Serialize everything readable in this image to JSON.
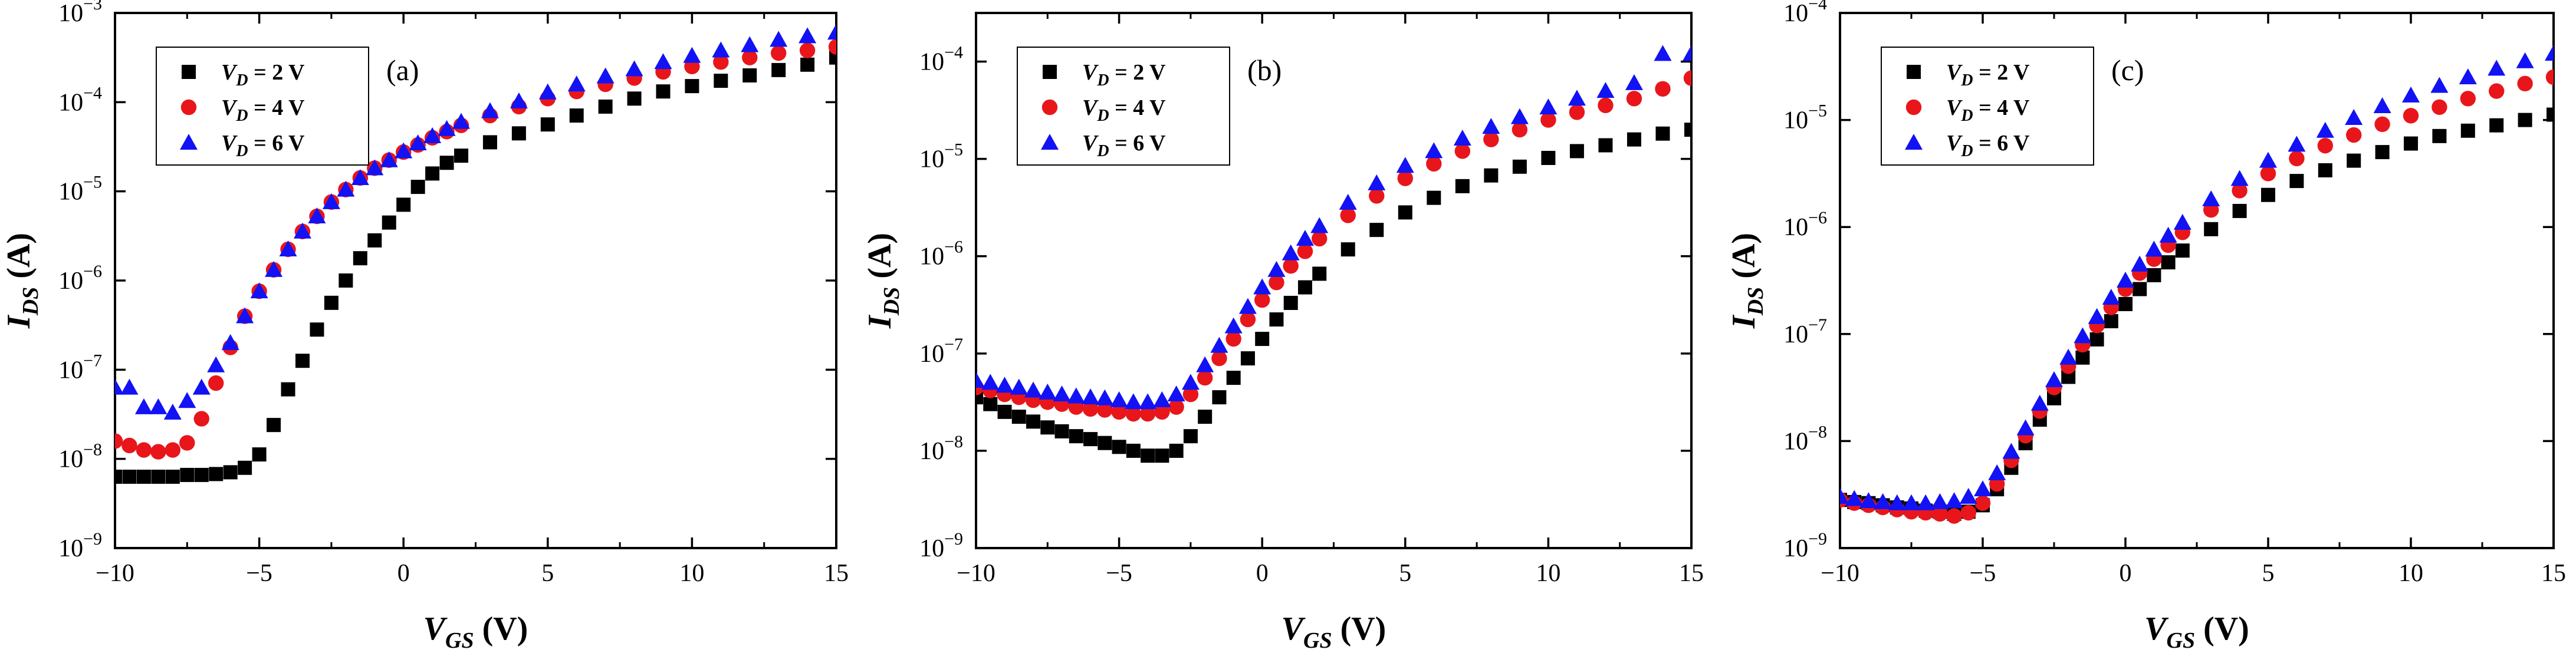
{
  "figure": {
    "panel_count": 3
  },
  "chart_data": [
    {
      "type": "scatter",
      "panel_label": "(a)",
      "xlabel": {
        "main": "V",
        "sub": "GS",
        "unit": "(V)"
      },
      "ylabel": {
        "main": "I",
        "sub": "DS",
        "unit": "(A)"
      },
      "xlim": [
        -10,
        15
      ],
      "ylim_log10": [
        -9,
        -3
      ],
      "y_scale": "log",
      "x_ticks": [
        -10,
        -5,
        0,
        5,
        10,
        15
      ],
      "x_tick_labels": [
        "−10",
        "−5",
        "0",
        "5",
        "10",
        "15"
      ],
      "y_ticks": [
        -9,
        -8,
        -7,
        -6,
        -5,
        -4,
        -3
      ],
      "legend_position": "top-left",
      "series": [
        {
          "name": "V_D = 2 V",
          "label_main": "V",
          "label_sub": "D",
          "label_rest": " = 2 V",
          "marker": "square",
          "color": "#000000",
          "x": [
            -10,
            -9.5,
            -9,
            -8.5,
            -8,
            -7.5,
            -7,
            -6.5,
            -6,
            -5.5,
            -5,
            -4.5,
            -4,
            -3.5,
            -3,
            -2.5,
            -2,
            -1.5,
            -1,
            -0.5,
            0,
            0.5,
            1,
            1.5,
            2,
            3,
            4,
            5,
            6,
            7,
            8,
            9,
            10,
            11,
            12,
            13,
            14,
            15
          ],
          "y_log10": [
            -8.2,
            -8.2,
            -8.2,
            -8.2,
            -8.2,
            -8.18,
            -8.18,
            -8.17,
            -8.15,
            -8.1,
            -7.95,
            -7.62,
            -7.22,
            -6.9,
            -6.55,
            -6.25,
            -6,
            -5.75,
            -5.55,
            -5.35,
            -5.15,
            -4.95,
            -4.8,
            -4.68,
            -4.6,
            -4.45,
            -4.35,
            -4.25,
            -4.15,
            -4.05,
            -3.96,
            -3.88,
            -3.82,
            -3.76,
            -3.7,
            -3.64,
            -3.58,
            -3.5
          ]
        },
        {
          "name": "V_D = 4 V",
          "label_main": "V",
          "label_sub": "D",
          "label_rest": " = 4 V",
          "marker": "circle",
          "color": "#e8161b",
          "x": [
            -10,
            -9.5,
            -9,
            -8.5,
            -8,
            -7.5,
            -7,
            -6.5,
            -6,
            -5.5,
            -5,
            -4.5,
            -4,
            -3.5,
            -3,
            -2.5,
            -2,
            -1.5,
            -1,
            -0.5,
            0,
            0.5,
            1,
            1.5,
            2,
            3,
            4,
            5,
            6,
            7,
            8,
            9,
            10,
            11,
            12,
            13,
            14,
            15
          ],
          "y_log10": [
            -7.8,
            -7.85,
            -7.9,
            -7.92,
            -7.9,
            -7.82,
            -7.55,
            -7.15,
            -6.75,
            -6.4,
            -6.12,
            -5.88,
            -5.65,
            -5.45,
            -5.28,
            -5.12,
            -4.98,
            -4.85,
            -4.74,
            -4.65,
            -4.56,
            -4.48,
            -4.4,
            -4.33,
            -4.26,
            -4.15,
            -4.05,
            -3.96,
            -3.88,
            -3.8,
            -3.73,
            -3.66,
            -3.6,
            -3.55,
            -3.5,
            -3.45,
            -3.42,
            -3.38
          ]
        },
        {
          "name": "V_D = 6 V",
          "label_main": "V",
          "label_sub": "D",
          "label_rest": " = 6 V",
          "marker": "triangle",
          "color": "#1212f5",
          "x": [
            -10,
            -9.5,
            -9,
            -8.5,
            -8,
            -7.5,
            -7,
            -6.5,
            -6,
            -5.5,
            -5,
            -4.5,
            -4,
            -3.5,
            -3,
            -2.5,
            -2,
            -1.5,
            -1,
            -0.5,
            0,
            0.5,
            1,
            1.5,
            2,
            3,
            4,
            5,
            6,
            7,
            8,
            9,
            10,
            11,
            12,
            13,
            14,
            15
          ],
          "y_log10": [
            -7.2,
            -7.2,
            -7.42,
            -7.42,
            -7.48,
            -7.35,
            -7.2,
            -6.95,
            -6.7,
            -6.4,
            -6.12,
            -5.88,
            -5.65,
            -5.45,
            -5.28,
            -5.12,
            -4.98,
            -4.85,
            -4.74,
            -4.65,
            -4.55,
            -4.46,
            -4.38,
            -4.3,
            -4.22,
            -4.1,
            -3.99,
            -3.89,
            -3.8,
            -3.71,
            -3.63,
            -3.55,
            -3.48,
            -3.42,
            -3.36,
            -3.3,
            -3.26,
            -3.22
          ]
        }
      ]
    },
    {
      "type": "scatter",
      "panel_label": "(b)",
      "xlabel": {
        "main": "V",
        "sub": "GS",
        "unit": "(V)"
      },
      "ylabel": {
        "main": "I",
        "sub": "DS",
        "unit": "(A)"
      },
      "xlim": [
        -10,
        15
      ],
      "ylim_log10": [
        -9,
        -3.5
      ],
      "y_scale": "log",
      "x_ticks": [
        -10,
        -5,
        0,
        5,
        10,
        15
      ],
      "x_tick_labels": [
        "−10",
        "−5",
        "0",
        "5",
        "10",
        "15"
      ],
      "y_ticks": [
        -9,
        -8,
        -7,
        -6,
        -5,
        -4
      ],
      "legend_position": "top-left",
      "series": [
        {
          "name": "V_D = 2 V",
          "label_main": "V",
          "label_sub": "D",
          "label_rest": " = 2 V",
          "marker": "square",
          "color": "#000000",
          "x": [
            -10,
            -9.5,
            -9,
            -8.5,
            -8,
            -7.5,
            -7,
            -6.5,
            -6,
            -5.5,
            -5,
            -4.5,
            -4,
            -3.5,
            -3,
            -2.5,
            -2,
            -1.5,
            -1,
            -0.5,
            0,
            0.5,
            1,
            1.5,
            2,
            3,
            4,
            5,
            6,
            7,
            8,
            9,
            10,
            11,
            12,
            13,
            14,
            15
          ],
          "y_log10": [
            -7.45,
            -7.52,
            -7.6,
            -7.65,
            -7.7,
            -7.76,
            -7.8,
            -7.85,
            -7.88,
            -7.92,
            -7.96,
            -8.0,
            -8.05,
            -8.05,
            -8.0,
            -7.85,
            -7.65,
            -7.45,
            -7.25,
            -7.05,
            -6.85,
            -6.65,
            -6.48,
            -6.32,
            -6.18,
            -5.93,
            -5.73,
            -5.55,
            -5.4,
            -5.28,
            -5.17,
            -5.08,
            -4.99,
            -4.92,
            -4.86,
            -4.8,
            -4.74,
            -4.7
          ]
        },
        {
          "name": "V_D = 4 V",
          "label_main": "V",
          "label_sub": "D",
          "label_rest": " = 4 V",
          "marker": "circle",
          "color": "#e8161b",
          "x": [
            -10,
            -9.5,
            -9,
            -8.5,
            -8,
            -7.5,
            -7,
            -6.5,
            -6,
            -5.5,
            -5,
            -4.5,
            -4,
            -3.5,
            -3,
            -2.5,
            -2,
            -1.5,
            -1,
            -0.5,
            0,
            0.5,
            1,
            1.5,
            2,
            3,
            4,
            5,
            6,
            7,
            8,
            9,
            10,
            11,
            12,
            13,
            14,
            15
          ],
          "y_log10": [
            -7.35,
            -7.38,
            -7.42,
            -7.45,
            -7.48,
            -7.5,
            -7.52,
            -7.55,
            -7.57,
            -7.58,
            -7.6,
            -7.62,
            -7.62,
            -7.6,
            -7.55,
            -7.42,
            -7.25,
            -7.05,
            -6.85,
            -6.65,
            -6.45,
            -6.27,
            -6.1,
            -5.95,
            -5.82,
            -5.58,
            -5.38,
            -5.2,
            -5.05,
            -4.92,
            -4.8,
            -4.7,
            -4.6,
            -4.52,
            -4.45,
            -4.38,
            -4.28,
            -4.17
          ]
        },
        {
          "name": "V_D = 6 V",
          "label_main": "V",
          "label_sub": "D",
          "label_rest": " = 6 V",
          "marker": "triangle",
          "color": "#1212f5",
          "x": [
            -10,
            -9.5,
            -9,
            -8.5,
            -8,
            -7.5,
            -7,
            -6.5,
            -6,
            -5.5,
            -5,
            -4.5,
            -4,
            -3.5,
            -3,
            -2.5,
            -2,
            -1.5,
            -1,
            -0.5,
            0,
            0.5,
            1,
            1.5,
            2,
            3,
            4,
            5,
            6,
            7,
            8,
            9,
            10,
            11,
            12,
            13,
            14,
            15
          ],
          "y_log10": [
            -7.28,
            -7.3,
            -7.33,
            -7.35,
            -7.38,
            -7.4,
            -7.42,
            -7.44,
            -7.45,
            -7.46,
            -7.48,
            -7.5,
            -7.5,
            -7.48,
            -7.42,
            -7.3,
            -7.12,
            -6.92,
            -6.72,
            -6.52,
            -6.32,
            -6.14,
            -5.97,
            -5.82,
            -5.69,
            -5.45,
            -5.25,
            -5.07,
            -4.92,
            -4.79,
            -4.67,
            -4.57,
            -4.47,
            -4.38,
            -4.3,
            -4.22,
            -3.92,
            -3.92
          ]
        }
      ]
    },
    {
      "type": "scatter",
      "panel_label": "(c)",
      "xlabel": {
        "main": "V",
        "sub": "GS",
        "unit": "(V)"
      },
      "ylabel": {
        "main": "I",
        "sub": "DS",
        "unit": "(A)"
      },
      "xlim": [
        -10,
        15
      ],
      "ylim_log10": [
        -9,
        -4
      ],
      "y_scale": "log",
      "x_ticks": [
        -10,
        -5,
        0,
        5,
        10,
        15
      ],
      "x_tick_labels": [
        "−10",
        "−5",
        "0",
        "5",
        "10",
        "15"
      ],
      "y_ticks": [
        -9,
        -8,
        -7,
        -6,
        -5,
        -4
      ],
      "legend_position": "top-left",
      "series": [
        {
          "name": "V_D = 2 V",
          "label_main": "V",
          "label_sub": "D",
          "label_rest": " = 2 V",
          "marker": "square",
          "color": "#000000",
          "x": [
            -10,
            -9.5,
            -9,
            -8.5,
            -8,
            -7.5,
            -7,
            -6.5,
            -6,
            -5.5,
            -5,
            -4.5,
            -4,
            -3.5,
            -3,
            -2.5,
            -2,
            -1.5,
            -1,
            -0.5,
            0,
            0.5,
            1,
            1.5,
            2,
            3,
            4,
            5,
            6,
            7,
            8,
            9,
            10,
            11,
            12,
            13,
            14,
            15
          ],
          "y_log10": [
            -8.55,
            -8.57,
            -8.58,
            -8.6,
            -8.62,
            -8.63,
            -8.65,
            -8.66,
            -8.68,
            -8.66,
            -8.6,
            -8.45,
            -8.25,
            -8.02,
            -7.8,
            -7.6,
            -7.4,
            -7.22,
            -7.05,
            -6.88,
            -6.72,
            -6.58,
            -6.45,
            -6.33,
            -6.22,
            -6.02,
            -5.85,
            -5.7,
            -5.57,
            -5.47,
            -5.38,
            -5.3,
            -5.22,
            -5.15,
            -5.1,
            -5.05,
            -5.0,
            -4.95
          ]
        },
        {
          "name": "V_D = 4 V",
          "label_main": "V",
          "label_sub": "D",
          "label_rest": " = 4 V",
          "marker": "circle",
          "color": "#e8161b",
          "x": [
            -10,
            -9.5,
            -9,
            -8.5,
            -8,
            -7.5,
            -7,
            -6.5,
            -6,
            -5.5,
            -5,
            -4.5,
            -4,
            -3.5,
            -3,
            -2.5,
            -2,
            -1.5,
            -1,
            -0.5,
            0,
            0.5,
            1,
            1.5,
            2,
            3,
            4,
            5,
            6,
            7,
            8,
            9,
            10,
            11,
            12,
            13,
            14,
            15
          ],
          "y_log10": [
            -8.55,
            -8.58,
            -8.6,
            -8.62,
            -8.64,
            -8.66,
            -8.67,
            -8.68,
            -8.7,
            -8.67,
            -8.58,
            -8.4,
            -8.18,
            -7.95,
            -7.72,
            -7.5,
            -7.3,
            -7.1,
            -6.92,
            -6.75,
            -6.58,
            -6.43,
            -6.3,
            -6.17,
            -6.05,
            -5.84,
            -5.66,
            -5.5,
            -5.36,
            -5.24,
            -5.14,
            -5.04,
            -4.96,
            -4.88,
            -4.8,
            -4.73,
            -4.66,
            -4.6
          ]
        },
        {
          "name": "V_D = 6 V",
          "label_main": "V",
          "label_sub": "D",
          "label_rest": " = 6 V",
          "marker": "triangle",
          "color": "#1212f5",
          "x": [
            -10,
            -9.5,
            -9,
            -8.5,
            -8,
            -7.5,
            -7,
            -6.5,
            -6,
            -5.5,
            -5,
            -4.5,
            -4,
            -3.5,
            -3,
            -2.5,
            -2,
            -1.5,
            -1,
            -0.5,
            0,
            0.5,
            1,
            1.5,
            2,
            3,
            4,
            5,
            6,
            7,
            8,
            9,
            10,
            11,
            12,
            13,
            14,
            15
          ],
          "y_log10": [
            -8.52,
            -8.54,
            -8.56,
            -8.57,
            -8.58,
            -8.58,
            -8.58,
            -8.57,
            -8.56,
            -8.52,
            -8.45,
            -8.3,
            -8.1,
            -7.88,
            -7.65,
            -7.43,
            -7.22,
            -7.02,
            -6.84,
            -6.66,
            -6.5,
            -6.35,
            -6.21,
            -6.08,
            -5.96,
            -5.74,
            -5.55,
            -5.38,
            -5.23,
            -5.1,
            -4.98,
            -4.87,
            -4.77,
            -4.68,
            -4.6,
            -4.52,
            -4.45,
            -4.38
          ]
        }
      ]
    }
  ]
}
